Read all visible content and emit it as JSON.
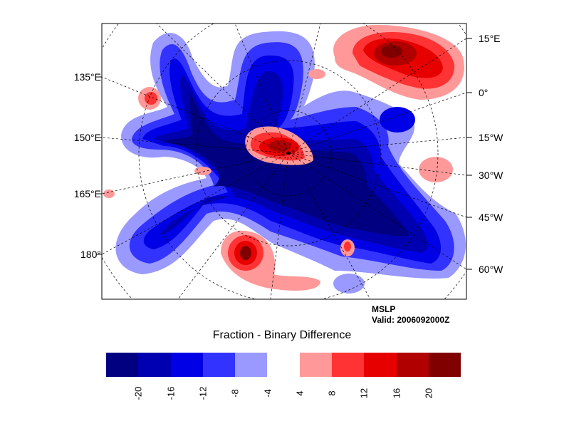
{
  "map": {
    "left_labels": [
      "135°E",
      "150°E",
      "165°E",
      "180°"
    ],
    "right_labels": [
      "15°E",
      "0°",
      "15°W",
      "30°W",
      "45°W",
      "60°W"
    ]
  },
  "info": {
    "variable": "MSLP",
    "valid": "Valid: 2006092000Z"
  },
  "title": "Fraction - Binary Difference",
  "colorbar": {
    "colors": [
      "#000080",
      "#0000b0",
      "#0000e6",
      "#3333ff",
      "#9999ff",
      "#ffffff",
      "#ff9999",
      "#ff3333",
      "#e60000",
      "#b00000",
      "#800000"
    ],
    "tick_labels": [
      "-20",
      "-16",
      "-12",
      "-8",
      "-4",
      "4",
      "8",
      "12",
      "16",
      "20"
    ]
  }
}
